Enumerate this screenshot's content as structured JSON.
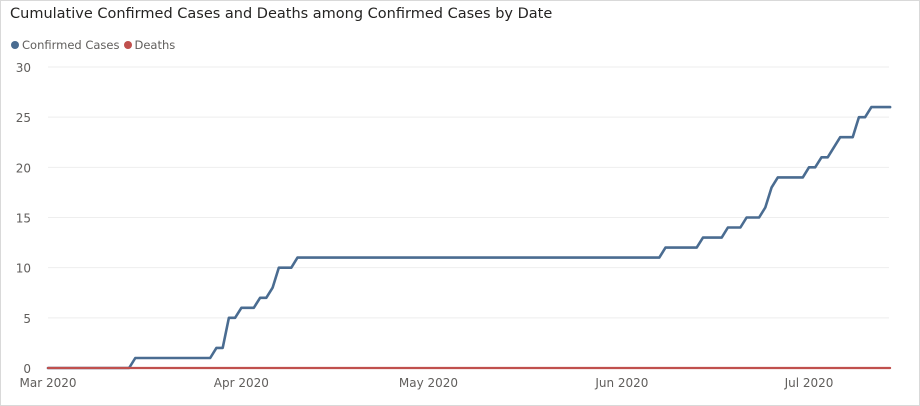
{
  "chart_data": {
    "type": "line",
    "title": "Cumulative Confirmed Cases and Deaths among Confirmed Cases by Date",
    "xlabel": "",
    "ylabel": "",
    "x_type": "date",
    "x_ticks": [
      "Mar 2020",
      "Apr 2020",
      "May 2020",
      "Jun 2020",
      "Jul 2020"
    ],
    "x_tick_dates": [
      "2020-03-01",
      "2020-04-01",
      "2020-05-01",
      "2020-06-01",
      "2020-07-01"
    ],
    "xlim": [
      "2020-03-01",
      "2020-07-14"
    ],
    "y_ticks": [
      0,
      5,
      10,
      15,
      20,
      25,
      30
    ],
    "ylim": [
      0,
      30
    ],
    "grid": true,
    "legend_position": "top-left",
    "series": [
      {
        "name": "Confirmed Cases",
        "color": "#4a6c91",
        "points": [
          [
            "2020-03-01",
            0
          ],
          [
            "2020-03-14",
            0
          ],
          [
            "2020-03-15",
            1
          ],
          [
            "2020-03-27",
            1
          ],
          [
            "2020-03-28",
            2
          ],
          [
            "2020-03-29",
            2
          ],
          [
            "2020-03-30",
            5
          ],
          [
            "2020-03-31",
            5
          ],
          [
            "2020-04-01",
            6
          ],
          [
            "2020-04-03",
            6
          ],
          [
            "2020-04-04",
            7
          ],
          [
            "2020-04-05",
            7
          ],
          [
            "2020-04-06",
            8
          ],
          [
            "2020-04-07",
            10
          ],
          [
            "2020-04-09",
            10
          ],
          [
            "2020-04-10",
            11
          ],
          [
            "2020-06-07",
            11
          ],
          [
            "2020-06-08",
            12
          ],
          [
            "2020-06-13",
            12
          ],
          [
            "2020-06-14",
            13
          ],
          [
            "2020-06-17",
            13
          ],
          [
            "2020-06-18",
            14
          ],
          [
            "2020-06-20",
            14
          ],
          [
            "2020-06-21",
            15
          ],
          [
            "2020-06-23",
            15
          ],
          [
            "2020-06-24",
            16
          ],
          [
            "2020-06-25",
            18
          ],
          [
            "2020-06-26",
            19
          ],
          [
            "2020-06-30",
            19
          ],
          [
            "2020-07-01",
            20
          ],
          [
            "2020-07-02",
            20
          ],
          [
            "2020-07-03",
            21
          ],
          [
            "2020-07-04",
            21
          ],
          [
            "2020-07-06",
            23
          ],
          [
            "2020-07-08",
            23
          ],
          [
            "2020-07-09",
            25
          ],
          [
            "2020-07-10",
            25
          ],
          [
            "2020-07-11",
            26
          ],
          [
            "2020-07-14",
            26
          ]
        ]
      },
      {
        "name": "Deaths",
        "color": "#c0504d",
        "points": [
          [
            "2020-03-01",
            0
          ],
          [
            "2020-07-14",
            0
          ]
        ]
      }
    ]
  }
}
